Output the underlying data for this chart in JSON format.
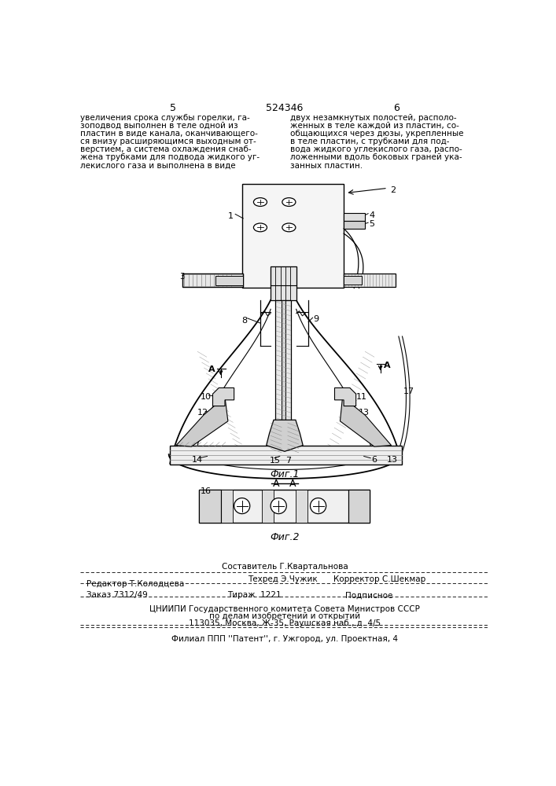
{
  "page_number_left": "5",
  "page_number_right": "6",
  "patent_number": "524346",
  "text_left": "увеличения срока службы горелки, га-\nзоподвод выполнен в теле одной из\nпластин в виде канала, оканчивающего-\nся внизу расширяющимся выходным от-\nверстием, а система охлаждения снаб-\nжена трубками для подвода жидкого уг-\nлекислого газа и выполнена в виде",
  "text_right": "двух незамкнутых полостей, располо-\nженных в теле каждой из пластин, со-\nобщающихся через дюзы, укрепленные\nв теле пластин, с трубками для под-\nвода жидкого углекислого газа, распо-\nложенными вдоль боковых граней ука-\nзанных пластин.",
  "fig1_label": "Фиг.1",
  "fig2_label": "Фиг.2",
  "aa_label": "А - А",
  "editor_line": "Редактор Т.Колодцева",
  "composer_line": "Составитель Г.Квартальнова",
  "techred_line": "Техред Э.Чужик",
  "corrector_line": "Корректор С.Шекмар",
  "order_line": "Заказ 7312/49",
  "tirazh_line": "Тираж  1221",
  "podpisnoe_line": "Подписное",
  "cniip_line1": "ЦНИИПИ Государственного комитета Совета Министров СССР",
  "cniip_line2": "по делам изобретений и открытий",
  "address_line": "113035, Москва, Ж-35, Раушская наб., д. 4/5",
  "filial_line": "Филиал ППП ''Патент'', г. Ужгород, ул. Проектная, 4",
  "bg_color": "#ffffff",
  "text_color": "#000000"
}
